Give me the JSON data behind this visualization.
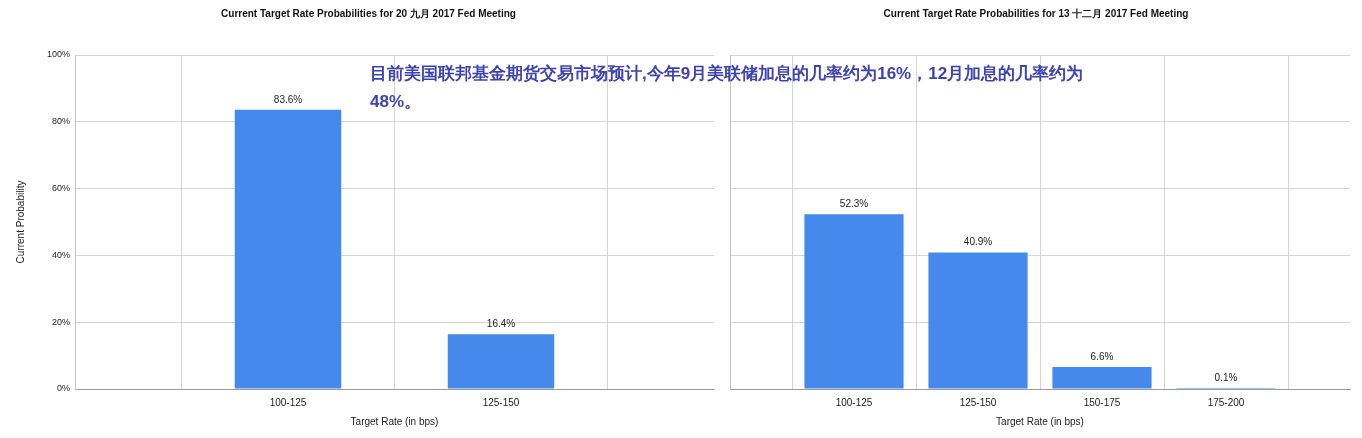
{
  "chart_data": [
    {
      "type": "bar",
      "title": "Current Target Rate Probabilities for 20 九月 2017 Fed Meeting",
      "xlabel": "Target Rate (in bps)",
      "ylabel": "Current Probability",
      "categories": [
        "100-125",
        "125-150"
      ],
      "values": [
        83.6,
        16.4
      ],
      "color": "#4589ed",
      "value_labels": [
        "83.6%",
        "16.4%"
      ],
      "ylim": [
        0,
        100
      ],
      "yticks": [
        {
          "value": 0,
          "label": "0%"
        },
        {
          "value": 20,
          "label": "20%"
        },
        {
          "value": 40,
          "label": "40%"
        },
        {
          "value": 60,
          "label": "60%"
        },
        {
          "value": 80,
          "label": "80%"
        },
        {
          "value": 100,
          "label": "100%"
        }
      ],
      "grid": true,
      "annotations": [
        "目前美国联邦基金期货交易市场预计,今年9月美联储加息的几率约为16%，12月加息的几率约为48%。"
      ]
    },
    {
      "type": "bar",
      "title": "Current Target Rate Probabilities for 13 十二月 2017 Fed Meeting",
      "xlabel": "Target Rate (in bps)",
      "categories": [
        "100-125",
        "125-150",
        "150-175",
        "175-200"
      ],
      "values": [
        52.3,
        40.9,
        6.6,
        0.1
      ],
      "color": "#4589ed",
      "value_labels": [
        "52.3%",
        "40.9%",
        "6.6%",
        "0.1%"
      ],
      "ylim": [
        0,
        100
      ],
      "yticks": [
        {
          "value": 0,
          "label": null
        },
        {
          "value": 20,
          "label": null
        },
        {
          "value": 40,
          "label": null
        },
        {
          "value": 60,
          "label": null
        },
        {
          "value": 80,
          "label": null
        },
        {
          "value": 100,
          "label": null
        }
      ],
      "grid": true,
      "tick_labels": "x"
    }
  ]
}
